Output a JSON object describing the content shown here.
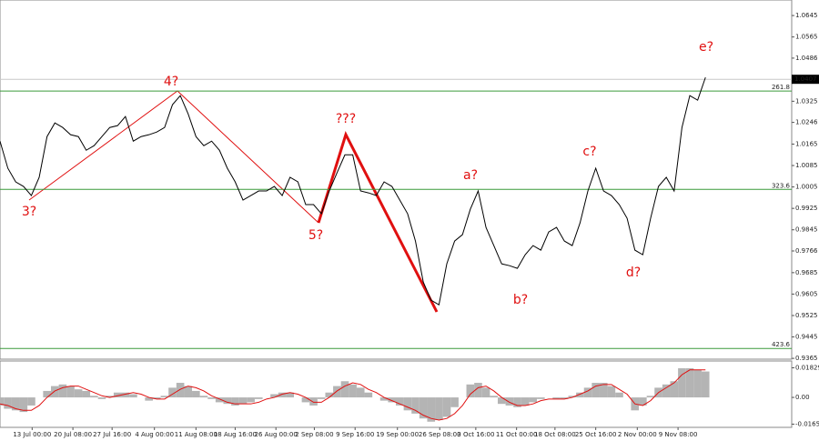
{
  "chart_data": [
    {
      "type": "line",
      "series": [
        {
          "color": "#000000",
          "values": [
            1.0176,
            1.0075,
            1.0024,
            1.0007,
            0.9973,
            1.0041,
            1.0193,
            1.0244,
            1.0227,
            1.02,
            1.0193,
            1.0142,
            1.0159,
            1.0193,
            1.0227,
            1.0234,
            1.0268,
            1.0176,
            1.0193,
            1.02,
            1.021,
            1.0227,
            1.0312,
            1.0346,
            1.0278,
            1.0193,
            1.0159,
            1.0176,
            1.0142,
            1.0075,
            1.0024,
            0.9956,
            0.9973,
            0.999,
            0.999,
            1.0007,
            0.9973,
            1.0041,
            1.0024,
            0.9939,
            0.9939,
            0.9905,
            0.999,
            1.0058,
            1.0125,
            1.0125,
            0.999,
            0.9983,
            0.9973,
            1.0024,
            1.0007,
            0.9956,
            0.9905,
            0.9803,
            0.965,
            0.9582,
            0.9565,
            0.9718,
            0.9803,
            0.9827,
            0.9922,
            0.999,
            0.9854,
            0.9786,
            0.9718,
            0.9711,
            0.9701,
            0.9752,
            0.9786,
            0.9769,
            0.9837,
            0.9854,
            0.9803,
            0.9786,
            0.9871,
            0.999,
            1.0075,
            0.999,
            0.9973,
            0.9939,
            0.9888,
            0.9769,
            0.9752,
            0.9888,
            1.0007,
            1.0041,
            0.999,
            1.0227,
            1.0346,
            1.0329,
            1.0414
          ]
        }
      ],
      "xlim": [
        0,
        101
      ],
      "xticks": [
        {
          "value": 4.1,
          "label": "13 Jul 00:00"
        },
        {
          "value": 9.3,
          "label": "20 Jul 08:00"
        },
        {
          "value": 14.3,
          "label": "27 Jul 16:00"
        },
        {
          "value": 19.7,
          "label": "4 Aug 00:00"
        },
        {
          "value": 25.0,
          "label": "11 Aug 08:00"
        },
        {
          "value": 30.0,
          "label": "18 Aug 16:00"
        },
        {
          "value": 35.2,
          "label": "26 Aug 00:00"
        },
        {
          "value": 40.1,
          "label": "2 Sep 08:00"
        },
        {
          "value": 45.3,
          "label": "9 Sep 16:00"
        },
        {
          "value": 50.7,
          "label": "19 Sep 00:00"
        },
        {
          "value": 56.1,
          "label": "26 Sep 08:00"
        },
        {
          "value": 60.7,
          "label": "3 Oct 16:00"
        },
        {
          "value": 65.9,
          "label": "11 Oct 00:00"
        },
        {
          "value": 70.8,
          "label": "18 Oct 08:00"
        },
        {
          "value": 76.0,
          "label": "25 Oct 16:00"
        },
        {
          "value": 81.3,
          "label": "2 Nov 00:00"
        },
        {
          "value": 86.5,
          "label": "9 Nov 08:00"
        }
      ],
      "ylim": [
        0.9362,
        1.0703
      ],
      "yticks": [
        1.0645,
        1.0565,
        1.0486,
        1.0325,
        1.0246,
        1.0165,
        1.0085,
        1.0005,
        0.9925,
        0.9845,
        0.9766,
        0.9685,
        0.9605,
        0.9525,
        0.9445,
        0.9365
      ],
      "current_price": 1.0407,
      "levels": [
        {
          "value": 1.0363,
          "label": "261.8"
        },
        {
          "value": 0.9996,
          "label": "323.6"
        },
        {
          "value": 0.9402,
          "label": "423.6"
        }
      ],
      "level_color": "#3a9a3a",
      "annotations": [
        "3?",
        "4?",
        "5?",
        "???",
        "a?",
        "b?",
        "c?",
        "d?",
        "e?"
      ]
    },
    {
      "type": "oscillator",
      "series": [
        {
          "color": "#b4b4b4",
          "values": [
            -0.005,
            -0.007,
            -0.008,
            -0.009,
            -0.005,
            0,
            0.004,
            0.007,
            0.008,
            0.007,
            0.005,
            0.004,
            0.001,
            -0.001,
            0.001,
            0.003,
            0.003,
            0.002,
            0,
            -0.002,
            -0.001,
            0.001,
            0.006,
            0.009,
            0.007,
            0.004,
            0.001,
            -0.001,
            -0.003,
            -0.004,
            -0.005,
            -0.004,
            -0.003,
            -0.001,
            0,
            0.002,
            0.003,
            0.003,
            0,
            -0.003,
            -0.005,
            -0.001,
            0.003,
            0.007,
            0.01,
            0.008,
            0.006,
            0.003,
            0,
            -0.002,
            -0.003,
            -0.005,
            -0.008,
            -0.01,
            -0.013,
            -0.015,
            -0.014,
            -0.012,
            -0.006,
            0,
            0.008,
            0.009,
            0.006,
            0.001,
            -0.004,
            -0.005,
            -0.006,
            -0.005,
            -0.003,
            -0.001,
            0,
            -0.001,
            -0.001,
            0.001,
            0.003,
            0.006,
            0.009,
            0.009,
            0.007,
            0.003,
            0,
            -0.008,
            -0.005,
            0.001,
            0.006,
            0.008,
            0.01,
            0.018,
            0.018,
            0.017,
            0.016
          ]
        },
        {
          "color": "#e01010",
          "values": [
            -0.004,
            -0.005,
            -0.007,
            -0.008,
            -0.008,
            -0.005,
            0,
            0.004,
            0.006,
            0.007,
            0.007,
            0.005,
            0.003,
            0.001,
            0,
            0.001,
            0.002,
            0.003,
            0.002,
            0,
            -0.001,
            -0.001,
            0.002,
            0.005,
            0.007,
            0.006,
            0.004,
            0.001,
            -0.001,
            -0.003,
            -0.004,
            -0.004,
            -0.004,
            -0.003,
            -0.001,
            0,
            0.002,
            0.003,
            0.002,
            0,
            -0.003,
            -0.003,
            0,
            0.004,
            0.007,
            0.009,
            0.008,
            0.005,
            0.003,
            0,
            -0.002,
            -0.004,
            -0.006,
            -0.008,
            -0.011,
            -0.013,
            -0.014,
            -0.013,
            -0.01,
            -0.005,
            0.002,
            0.006,
            0.007,
            0.004,
            0,
            -0.003,
            -0.005,
            -0.005,
            -0.004,
            -0.002,
            -0.001,
            -0.001,
            -0.001,
            0,
            0.002,
            0.004,
            0.007,
            0.008,
            0.008,
            0.005,
            0.002,
            -0.004,
            -0.005,
            -0.002,
            0.003,
            0.006,
            0.009,
            0.014,
            0.017,
            0.017,
            0.017
          ]
        }
      ],
      "ylim": [
        -0.0185,
        0.0225
      ],
      "yticks": [
        0.01829,
        {
          "value": 0,
          "label": "0.00"
        },
        -0.01651
      ]
    }
  ]
}
